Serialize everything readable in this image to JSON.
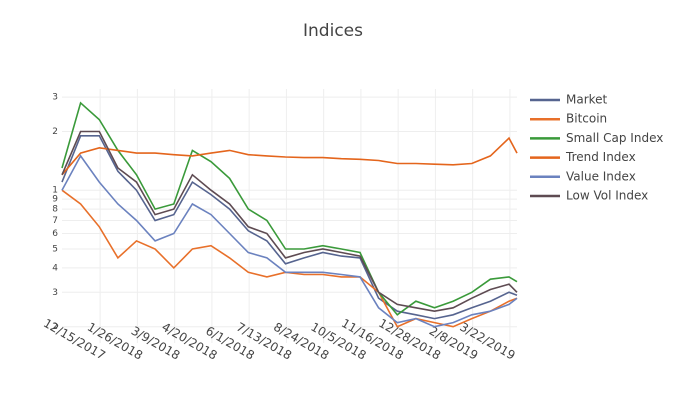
{
  "chart_data": {
    "type": "line",
    "title": "Indices",
    "log_y": true,
    "grid": true,
    "legend": "right",
    "x": [
      "11/2/2017",
      "11/23/2017",
      "12/14/2017",
      "1/4/2018",
      "1/25/2018",
      "2/15/2018",
      "3/8/2018",
      "3/29/2018",
      "4/19/2018",
      "5/10/2018",
      "5/31/2018",
      "6/21/2018",
      "7/12/2018",
      "8/2/2018",
      "8/23/2018",
      "9/13/2018",
      "10/4/2018",
      "10/25/2018",
      "11/15/2018",
      "12/6/2018",
      "12/27/2018",
      "1/17/2019",
      "2/7/2019",
      "2/28/2019",
      "3/21/2019",
      "3/30/2019"
    ],
    "xlim": [
      "11/2/2017",
      "3/30/2019"
    ],
    "xticks": [
      "12/15/2017",
      "1/26/2018",
      "3/9/2018",
      "4/20/2018",
      "6/1/2018",
      "7/13/2018",
      "8/24/2018",
      "10/5/2018",
      "11/16/2018",
      "12/28/2018",
      "2/8/2019",
      "3/22/2019"
    ],
    "ylim": [
      0.165,
      3.3
    ],
    "yticks": [
      {
        "value": 0.2,
        "label": "2"
      },
      {
        "value": 0.3,
        "label": "3"
      },
      {
        "value": 0.4,
        "label": "4"
      },
      {
        "value": 0.5,
        "label": "5"
      },
      {
        "value": 0.6,
        "label": "6"
      },
      {
        "value": 0.7,
        "label": "7"
      },
      {
        "value": 0.8,
        "label": "8"
      },
      {
        "value": 0.9,
        "label": "9"
      },
      1,
      2,
      3
    ],
    "series": [
      {
        "name": "Market",
        "color": "#56648f",
        "values": [
          1.1,
          1.9,
          1.9,
          1.25,
          1.0,
          0.7,
          0.75,
          1.1,
          0.95,
          0.8,
          0.62,
          0.55,
          0.42,
          0.45,
          0.48,
          0.46,
          0.45,
          0.28,
          0.24,
          0.23,
          0.22,
          0.23,
          0.25,
          0.27,
          0.3,
          0.29
        ]
      },
      {
        "name": "Bitcoin",
        "color": "#e8702a",
        "values": [
          1.0,
          0.85,
          0.65,
          0.45,
          0.55,
          0.5,
          0.4,
          0.5,
          0.52,
          0.45,
          0.38,
          0.36,
          0.38,
          0.37,
          0.37,
          0.36,
          0.36,
          0.3,
          0.2,
          0.22,
          0.21,
          0.2,
          0.22,
          0.24,
          0.27,
          0.28
        ]
      },
      {
        "name": "Small Cap Index",
        "color": "#3a9a3a",
        "values": [
          1.3,
          2.8,
          2.3,
          1.6,
          1.2,
          0.8,
          0.85,
          1.6,
          1.4,
          1.15,
          0.8,
          0.7,
          0.5,
          0.5,
          0.52,
          0.5,
          0.48,
          0.3,
          0.23,
          0.27,
          0.25,
          0.27,
          0.3,
          0.35,
          0.36,
          0.34
        ]
      },
      {
        "name": "Trend Index",
        "color": "#e4651c",
        "values": [
          1.2,
          1.55,
          1.65,
          1.6,
          1.55,
          1.55,
          1.52,
          1.5,
          1.55,
          1.6,
          1.52,
          1.5,
          1.48,
          1.47,
          1.47,
          1.45,
          1.44,
          1.42,
          1.37,
          1.37,
          1.36,
          1.35,
          1.37,
          1.5,
          1.85,
          1.55
        ]
      },
      {
        "name": "Value Index",
        "color": "#6b82bf",
        "values": [
          1.0,
          1.5,
          1.1,
          0.85,
          0.7,
          0.55,
          0.6,
          0.85,
          0.75,
          0.6,
          0.48,
          0.45,
          0.38,
          0.38,
          0.38,
          0.37,
          0.36,
          0.25,
          0.21,
          0.22,
          0.2,
          0.21,
          0.23,
          0.24,
          0.26,
          0.28
        ]
      },
      {
        "name": "Low Vol Index",
        "color": "#5e4b52",
        "values": [
          1.2,
          2.0,
          2.0,
          1.3,
          1.1,
          0.75,
          0.8,
          1.2,
          1.0,
          0.85,
          0.65,
          0.6,
          0.45,
          0.48,
          0.5,
          0.48,
          0.46,
          0.3,
          0.26,
          0.25,
          0.24,
          0.25,
          0.28,
          0.31,
          0.33,
          0.3
        ]
      }
    ]
  }
}
